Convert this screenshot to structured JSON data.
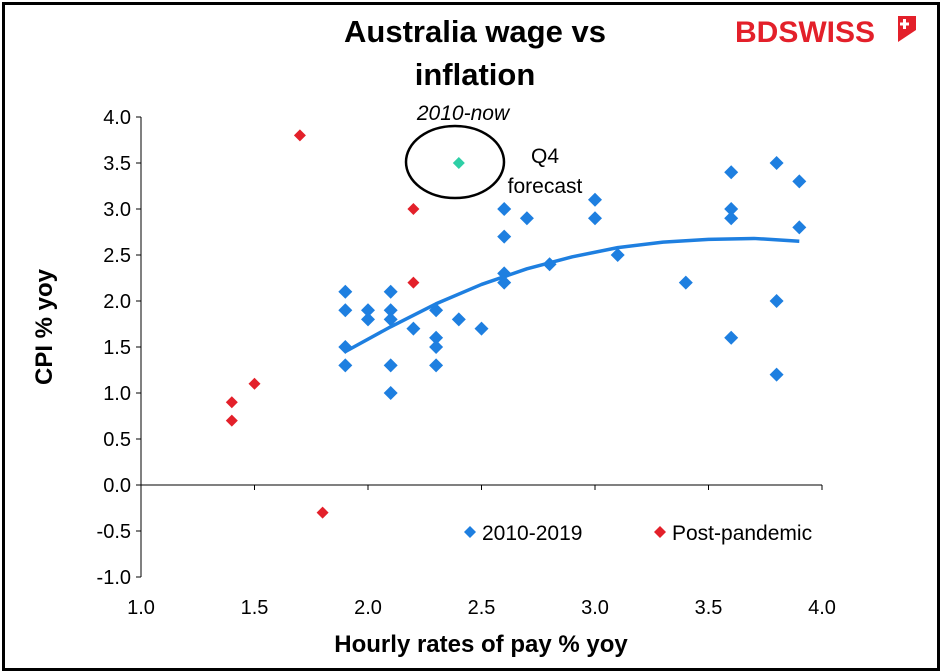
{
  "chart_data": {
    "type": "scatter",
    "title": "Australia wage vs inflation",
    "title_lines": [
      "Australia wage vs",
      "inflation"
    ],
    "xlabel": "Hourly rates of pay % yoy",
    "ylabel": "CPI % yoy",
    "xlim": [
      1.0,
      4.0
    ],
    "ylim": [
      -1.0,
      4.0
    ],
    "x_ticks": [
      "1.0",
      "1.5",
      "2.0",
      "2.5",
      "3.0",
      "3.5",
      "4.0"
    ],
    "y_ticks": [
      "4.0",
      "3.5",
      "3.0",
      "2.5",
      "2.0",
      "1.5",
      "1.0",
      "0.5",
      "0.0",
      "-0.5",
      "-1.0"
    ],
    "x_tick_values": [
      1.0,
      1.5,
      2.0,
      2.5,
      3.0,
      3.5,
      4.0
    ],
    "y_tick_values": [
      4.0,
      3.5,
      3.0,
      2.5,
      2.0,
      1.5,
      1.0,
      0.5,
      0.0,
      -0.5,
      -1.0
    ],
    "series": [
      {
        "name": "2010-2019",
        "color": "#1e7fe0",
        "marker": "diamond",
        "points": [
          [
            1.9,
            2.1
          ],
          [
            1.9,
            1.9
          ],
          [
            1.9,
            1.5
          ],
          [
            1.9,
            1.3
          ],
          [
            2.0,
            1.9
          ],
          [
            2.0,
            1.8
          ],
          [
            2.1,
            2.1
          ],
          [
            2.1,
            1.9
          ],
          [
            2.1,
            1.8
          ],
          [
            2.1,
            1.3
          ],
          [
            2.1,
            1.0
          ],
          [
            2.2,
            1.7
          ],
          [
            2.3,
            1.9
          ],
          [
            2.3,
            1.6
          ],
          [
            2.3,
            1.5
          ],
          [
            2.3,
            1.3
          ],
          [
            2.4,
            1.8
          ],
          [
            2.5,
            1.7
          ],
          [
            2.6,
            3.0
          ],
          [
            2.6,
            2.7
          ],
          [
            2.6,
            2.3
          ],
          [
            2.6,
            2.2
          ],
          [
            2.7,
            2.9
          ],
          [
            2.8,
            2.4
          ],
          [
            3.0,
            3.1
          ],
          [
            3.0,
            2.9
          ],
          [
            3.1,
            2.5
          ],
          [
            3.4,
            2.2
          ],
          [
            3.6,
            3.4
          ],
          [
            3.6,
            3.0
          ],
          [
            3.6,
            2.9
          ],
          [
            3.6,
            1.6
          ],
          [
            3.8,
            3.5
          ],
          [
            3.8,
            2.0
          ],
          [
            3.8,
            1.2
          ],
          [
            3.9,
            3.3
          ],
          [
            3.9,
            2.8
          ]
        ]
      },
      {
        "name": "Post-pandemic",
        "color": "#e3202a",
        "marker": "diamond",
        "points": [
          [
            1.4,
            0.9
          ],
          [
            1.4,
            0.7
          ],
          [
            1.5,
            1.1
          ],
          [
            1.7,
            3.8
          ],
          [
            1.8,
            -0.3
          ],
          [
            2.2,
            3.0
          ],
          [
            2.2,
            2.2
          ]
        ]
      },
      {
        "name": "Q4 forecast",
        "color": "#2ecfa6",
        "marker": "diamond",
        "points": [
          [
            2.4,
            3.5
          ]
        ]
      }
    ],
    "trendline": {
      "type": "polynomial",
      "color": "#1e7fe0",
      "points": [
        [
          1.9,
          1.45
        ],
        [
          2.1,
          1.72
        ],
        [
          2.3,
          1.97
        ],
        [
          2.5,
          2.18
        ],
        [
          2.7,
          2.35
        ],
        [
          2.9,
          2.48
        ],
        [
          3.1,
          2.58
        ],
        [
          3.3,
          2.64
        ],
        [
          3.5,
          2.67
        ],
        [
          3.7,
          2.68
        ],
        [
          3.9,
          2.65
        ]
      ]
    },
    "annotations": {
      "period": "2010-now",
      "forecast_lines": [
        "Q4",
        "forecast"
      ]
    },
    "legend": {
      "position": "bottom-right",
      "entries": [
        "2010-2019",
        "Post-pandemic"
      ]
    }
  },
  "logo": {
    "text_bd": "BD",
    "text_swiss": "SWISS",
    "color_bd": "#e3202a",
    "color_swiss": "#e3202a"
  }
}
